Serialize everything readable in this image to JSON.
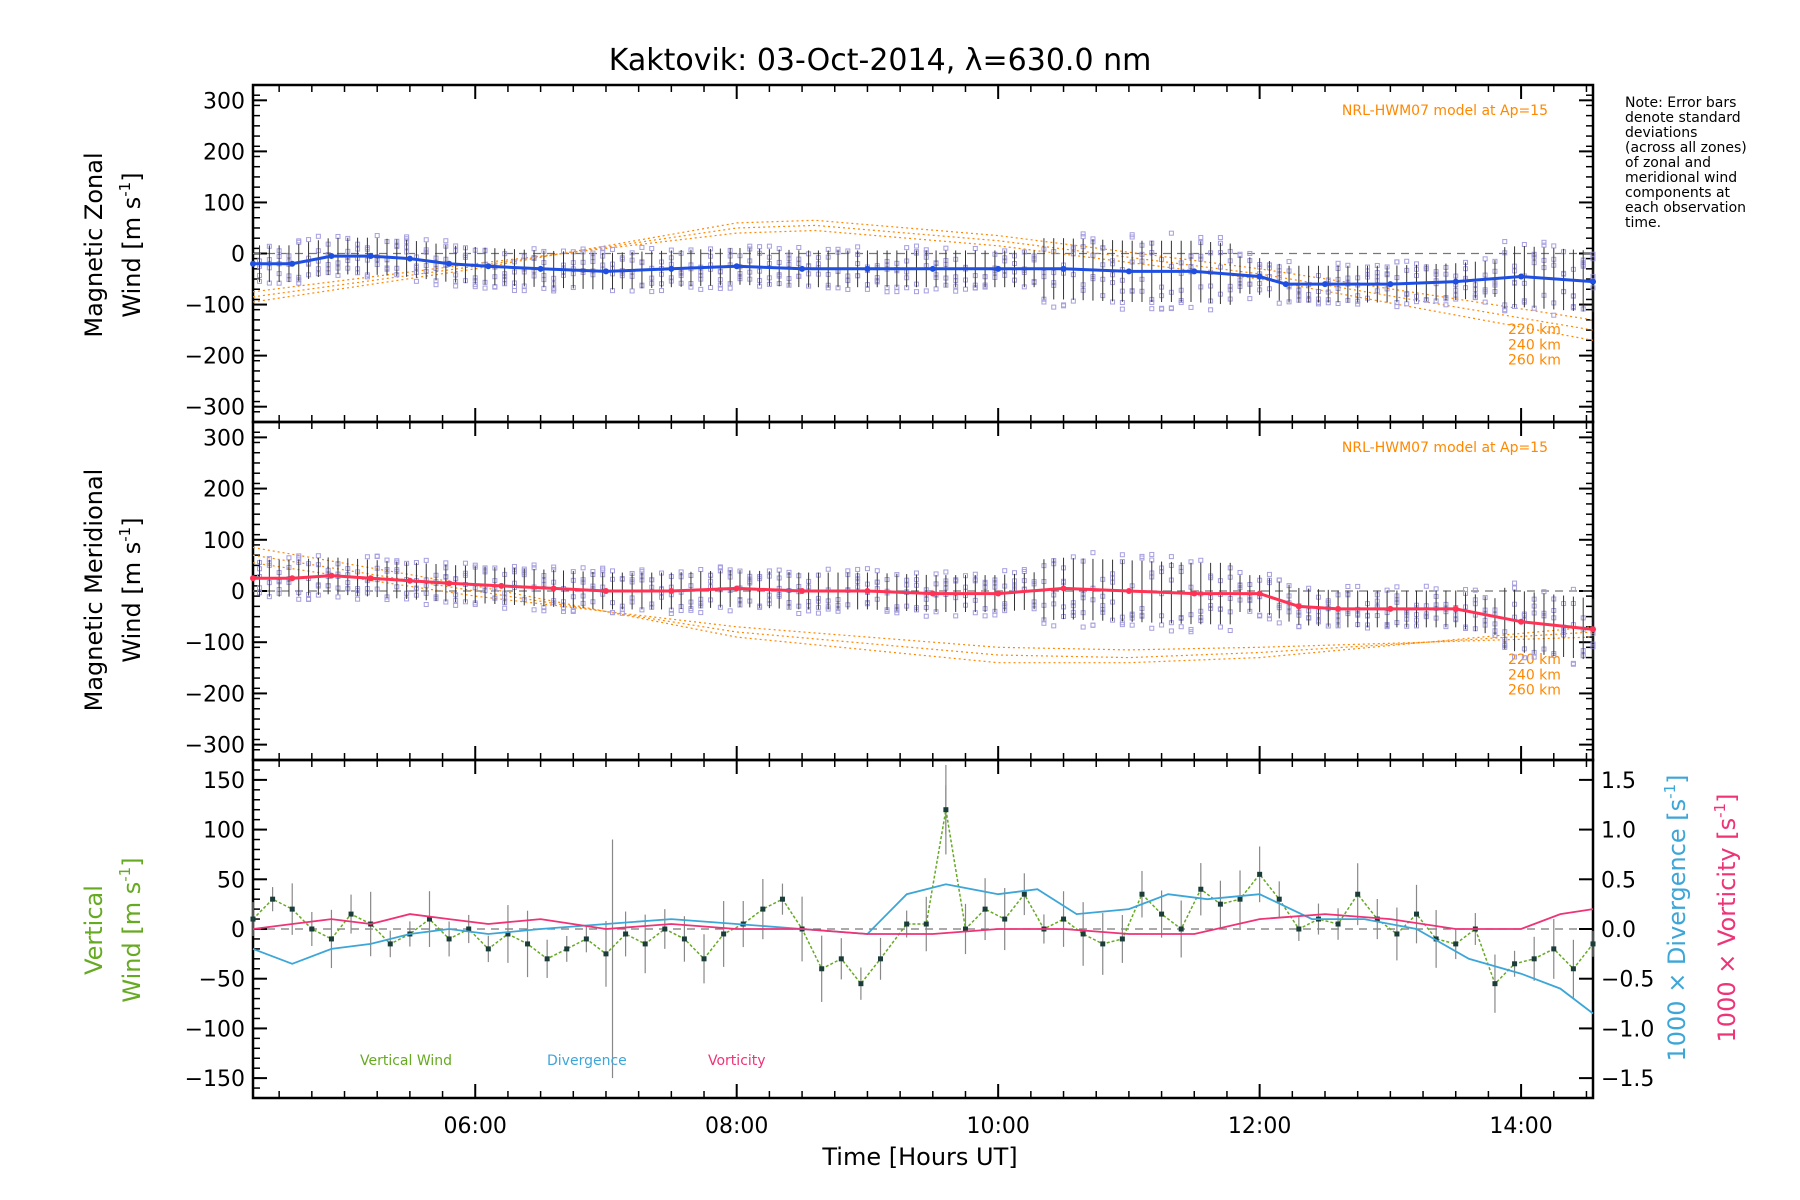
{
  "colors": {
    "zonal_line": "#1f4fe0",
    "meridional_line": "#ff3355",
    "model": "#ff8800",
    "zone_points": "#a59fe0",
    "error_bar": "#333333",
    "vertical": "#66aa22",
    "divergence": "#3da6d8",
    "vorticity": "#ee3377",
    "zero_line": "#777777"
  },
  "chart_data": {
    "type": "line",
    "title": "Kaktovik: 03-Oct-2014, λ=630.0 nm",
    "xlabel": "Time [Hours UT]",
    "x_range": [
      4.3,
      14.55
    ],
    "x_ticks": [
      "06:00",
      "08:00",
      "10:00",
      "12:00",
      "14:00"
    ],
    "x_tick_values": [
      6,
      8,
      10,
      12,
      14
    ],
    "note": [
      "Note: Error bars",
      "denote standard",
      "deviations",
      "(across all zones)",
      "of zonal and",
      "meridional wind",
      "components at",
      "each observation",
      "time."
    ],
    "panels": [
      {
        "id": "zonal",
        "ylabel_line1": "Magnetic Zonal",
        "ylabel_line2": "Wind [m s",
        "ylabel_sup": "-1",
        "ylabel_end": "]",
        "ylim": [
          -330,
          330
        ],
        "y_ticks": [
          "300",
          "200",
          "100",
          "0",
          "−100",
          "−200",
          "−300"
        ],
        "y_tick_values": [
          300,
          200,
          100,
          0,
          -100,
          -200,
          -300
        ],
        "model_label": "NRL-HWM07 model at Ap=15",
        "model_alt_labels": [
          "220 km",
          "240 km",
          "260 km"
        ],
        "series": [
          {
            "name": "Magnetic Zonal Wind",
            "x": [
              4.3,
              4.6,
              4.9,
              5.2,
              5.5,
              5.8,
              6.1,
              6.5,
              7.0,
              7.5,
              8.0,
              8.5,
              9.0,
              9.5,
              10.0,
              10.5,
              11.0,
              11.5,
              12.0,
              12.2,
              12.5,
              13.0,
              13.5,
              14.0,
              14.55
            ],
            "y": [
              -20,
              -20,
              -5,
              -5,
              -10,
              -20,
              -25,
              -30,
              -35,
              -30,
              -25,
              -30,
              -30,
              -30,
              -30,
              -30,
              -35,
              -35,
              -45,
              -60,
              -60,
              -60,
              -55,
              -45,
              -55
            ]
          }
        ],
        "model_curves": [
          {
            "altitude": "220 km",
            "x": [
              4.3,
              6.0,
              8.0,
              8.6,
              10.0,
              12.0,
              14.55
            ],
            "y": [
              -95,
              -30,
              60,
              65,
              35,
              -30,
              -130
            ]
          },
          {
            "altitude": "240 km",
            "x": [
              4.3,
              6.0,
              8.0,
              8.6,
              10.0,
              12.0,
              14.55
            ],
            "y": [
              -85,
              -25,
              50,
              55,
              25,
              -40,
              -150
            ]
          },
          {
            "altitude": "260 km",
            "x": [
              4.3,
              6.0,
              8.0,
              8.6,
              10.0,
              12.0,
              14.55
            ],
            "y": [
              -75,
              -20,
              40,
              45,
              15,
              -50,
              -170
            ]
          }
        ]
      },
      {
        "id": "meridional",
        "ylabel_line1": "Magnetic Meridional",
        "ylabel_line2": "Wind [m s",
        "ylabel_sup": "-1",
        "ylabel_end": "]",
        "ylim": [
          -330,
          330
        ],
        "y_ticks": [
          "300",
          "200",
          "100",
          "0",
          "−100",
          "−200",
          "−300"
        ],
        "y_tick_values": [
          300,
          200,
          100,
          0,
          -100,
          -200,
          -300
        ],
        "model_label": "NRL-HWM07 model at Ap=15",
        "model_alt_labels": [
          "220 km",
          "240 km",
          "260 km"
        ],
        "series": [
          {
            "name": "Magnetic Meridional Wind",
            "x": [
              4.3,
              4.6,
              4.9,
              5.2,
              5.5,
              5.8,
              6.2,
              6.6,
              7.0,
              7.5,
              8.0,
              8.5,
              9.0,
              9.5,
              10.0,
              10.5,
              11.0,
              11.5,
              12.0,
              12.3,
              12.6,
              13.0,
              13.5,
              14.0,
              14.55
            ],
            "y": [
              25,
              25,
              30,
              25,
              20,
              15,
              10,
              5,
              0,
              0,
              5,
              0,
              0,
              -5,
              -5,
              5,
              0,
              -5,
              -5,
              -30,
              -35,
              -35,
              -35,
              -60,
              -75
            ]
          }
        ],
        "model_curves": [
          {
            "altitude": "220 km",
            "x": [
              4.3,
              6.0,
              8.0,
              10.0,
              11.0,
              12.0,
              14.55
            ],
            "y": [
              85,
              10,
              -90,
              -140,
              -140,
              -130,
              -70
            ]
          },
          {
            "altitude": "240 km",
            "x": [
              4.3,
              6.0,
              8.0,
              10.0,
              11.0,
              12.0,
              14.55
            ],
            "y": [
              70,
              0,
              -80,
              -125,
              -130,
              -120,
              -80
            ]
          },
          {
            "altitude": "260 km",
            "x": [
              4.3,
              6.0,
              8.0,
              10.0,
              11.0,
              12.0,
              14.55
            ],
            "y": [
              55,
              -10,
              -70,
              -110,
              -115,
              -110,
              -90
            ]
          }
        ]
      },
      {
        "id": "vertical",
        "ylabel_line1": "Vertical",
        "ylabel_line2": "Wind [m s",
        "ylabel_sup": "-1",
        "ylabel_end": "]",
        "ylim": [
          -170,
          170
        ],
        "y_ticks": [
          "150",
          "100",
          "50",
          "0",
          "−50",
          "−100",
          "−150"
        ],
        "y_tick_values": [
          150,
          100,
          50,
          0,
          -50,
          -100,
          -150
        ],
        "y2lim": [
          -1.7,
          1.7
        ],
        "y2_ticks": [
          "1.5",
          "1.0",
          "0.5",
          "0.0",
          "−0.5",
          "−1.0",
          "−1.5"
        ],
        "y2_tick_values": [
          1.5,
          1.0,
          0.5,
          0.0,
          -0.5,
          -1.0,
          -1.5
        ],
        "y2_label_divergence": "1000 × Divergence [s",
        "y2_label_vorticity": "1000 × Vorticity [s",
        "y2_sup": "-1",
        "y2_end": "]",
        "legend": [
          "Vertical Wind",
          "Divergence",
          "Vorticity"
        ],
        "series": [
          {
            "name": "Vertical Wind",
            "x": [
              4.3,
              4.45,
              4.6,
              4.75,
              4.9,
              5.05,
              5.2,
              5.35,
              5.5,
              5.65,
              5.8,
              5.95,
              6.1,
              6.25,
              6.4,
              6.55,
              6.7,
              6.85,
              7.0,
              7.15,
              7.3,
              7.45,
              7.6,
              7.75,
              7.9,
              8.05,
              8.2,
              8.35,
              8.5,
              8.65,
              8.8,
              8.95,
              9.1,
              9.3,
              9.45,
              9.6,
              9.75,
              9.9,
              10.05,
              10.2,
              10.35,
              10.5,
              10.65,
              10.8,
              10.95,
              11.1,
              11.25,
              11.4,
              11.55,
              11.7,
              11.85,
              12.0,
              12.15,
              12.3,
              12.45,
              12.6,
              12.75,
              12.9,
              13.05,
              13.2,
              13.35,
              13.5,
              13.65,
              13.8,
              13.95,
              14.1,
              14.25,
              14.4,
              14.55
            ],
            "y": [
              10,
              30,
              20,
              0,
              -10,
              15,
              5,
              -15,
              -5,
              10,
              -10,
              0,
              -20,
              -5,
              -15,
              -30,
              -20,
              -10,
              -25,
              -5,
              -15,
              0,
              -10,
              -30,
              -5,
              5,
              20,
              30,
              0,
              -40,
              -30,
              -55,
              -30,
              5,
              5,
              120,
              0,
              20,
              10,
              35,
              0,
              10,
              -5,
              -15,
              -10,
              35,
              15,
              0,
              40,
              25,
              30,
              55,
              30,
              0,
              10,
              5,
              35,
              10,
              -5,
              15,
              -10,
              -15,
              0,
              -55,
              -35,
              -30,
              -20,
              -40,
              -15
            ]
          },
          {
            "name": "Divergence",
            "x": [
              4.3,
              4.6,
              4.9,
              5.2,
              5.5,
              5.8,
              6.1,
              6.5,
              7.0,
              7.5,
              8.0,
              8.5,
              9.0,
              9.3,
              9.6,
              10.0,
              10.3,
              10.6,
              11.0,
              11.3,
              11.6,
              12.0,
              12.4,
              12.8,
              13.2,
              13.6,
              14.0,
              14.3,
              14.55
            ],
            "y": [
              -0.2,
              -0.35,
              -0.2,
              -0.15,
              -0.05,
              0.0,
              -0.05,
              0.0,
              0.05,
              0.1,
              0.05,
              0.0,
              -0.05,
              0.35,
              0.45,
              0.35,
              0.4,
              0.15,
              0.2,
              0.35,
              0.3,
              0.35,
              0.1,
              0.1,
              0.0,
              -0.3,
              -0.45,
              -0.6,
              -0.85
            ]
          },
          {
            "name": "Vorticity",
            "x": [
              4.3,
              4.6,
              4.9,
              5.2,
              5.5,
              5.8,
              6.1,
              6.5,
              7.0,
              7.5,
              8.0,
              8.5,
              9.0,
              9.5,
              10.0,
              10.5,
              11.0,
              11.5,
              12.0,
              12.5,
              13.0,
              13.5,
              14.0,
              14.3,
              14.55
            ],
            "y": [
              0.0,
              0.05,
              0.1,
              0.05,
              0.15,
              0.1,
              0.05,
              0.1,
              0.0,
              0.05,
              0.0,
              0.0,
              -0.05,
              -0.05,
              0.0,
              0.0,
              -0.05,
              -0.05,
              0.1,
              0.15,
              0.1,
              0.0,
              0.0,
              0.15,
              0.2
            ]
          }
        ]
      }
    ]
  }
}
